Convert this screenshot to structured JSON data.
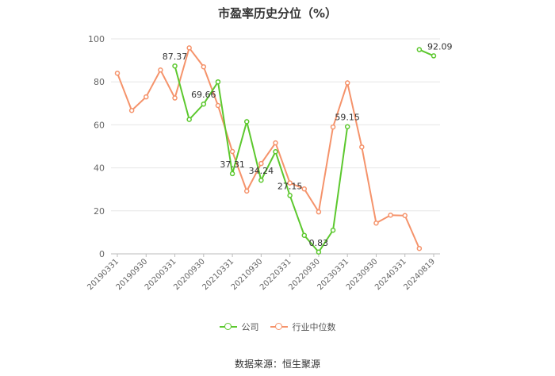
{
  "chart_data": {
    "type": "line",
    "title": "市盈率历史分位（%）",
    "ylim": [
      0,
      100
    ],
    "yticks": [
      0,
      20,
      40,
      60,
      80,
      100
    ],
    "x": [
      "20190331",
      "20190630",
      "20190930",
      "20191231",
      "20200331",
      "20200630",
      "20200930",
      "20201231",
      "20210331",
      "20210630",
      "20210930",
      "20211231",
      "20220331",
      "20220630",
      "20220930",
      "20221231",
      "20230331",
      "20230630",
      "20230930",
      "20231231",
      "20240331",
      "20240630",
      "20240819"
    ],
    "xtick_labels": [
      "20190331",
      "20190930",
      "20200331",
      "20200930",
      "20210331",
      "20210930",
      "20220331",
      "20220930",
      "20230331",
      "20230930",
      "20240331",
      "20240819"
    ],
    "series": [
      {
        "name": "公司",
        "color": "#5cc82e",
        "values": [
          null,
          null,
          null,
          null,
          87.37,
          62.5,
          69.66,
          80.0,
          37.31,
          61.5,
          34.24,
          47.5,
          27.15,
          8.6,
          0.83,
          11.0,
          59.15,
          null,
          null,
          null,
          null,
          95.0,
          92.09
        ],
        "labels": [
          null,
          null,
          null,
          null,
          "87.37",
          null,
          "69.66",
          null,
          "37.31",
          null,
          "34.24",
          null,
          "27.15",
          null,
          "0.83",
          null,
          "59.15",
          null,
          null,
          null,
          null,
          null,
          "92.09"
        ]
      },
      {
        "name": "行业中位数",
        "color": "#f5936b",
        "values": [
          84.0,
          66.7,
          73.0,
          85.5,
          72.5,
          95.8,
          87.0,
          69.0,
          47.6,
          29.2,
          42.0,
          51.6,
          33.0,
          30.2,
          19.5,
          59.0,
          79.5,
          49.7,
          14.3,
          18.0,
          17.8,
          2.5,
          null
        ]
      }
    ],
    "legend_position": "bottom",
    "grid": true
  },
  "source": "数据来源：恒生聚源"
}
